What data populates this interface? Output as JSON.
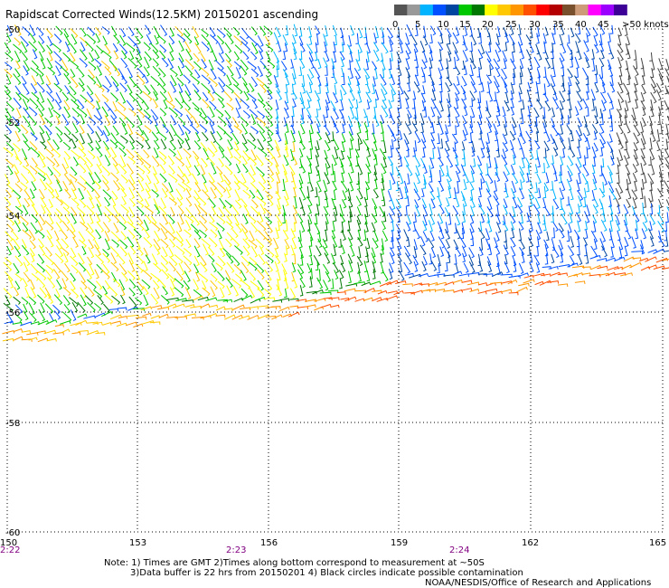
{
  "title": "Rapidscat Corrected Winds(12.5KM) 20150201 ascending",
  "legend": {
    "labels": [
      "0",
      "5",
      "10",
      "15",
      "20",
      "25",
      "30",
      "35",
      "40",
      "45",
      ">50 knots"
    ],
    "colors": [
      "#555555",
      "#999999",
      "#00b4ff",
      "#0050ff",
      "#0046a0",
      "#00c800",
      "#007800",
      "#ffff00",
      "#ffc800",
      "#ff9600",
      "#ff5000",
      "#ff0000",
      "#b40000",
      "#78502d",
      "#cd9b78",
      "#ff00ff",
      "#9b00ff",
      "#3c0096"
    ]
  },
  "axes": {
    "lat_labels": [
      "-50",
      "-52",
      "-54",
      "-56",
      "-58",
      "-60"
    ],
    "lon_labels": [
      "150",
      "153",
      "156",
      "159",
      "162",
      "165"
    ]
  },
  "times": [
    "2:22",
    "2:23",
    "2:24"
  ],
  "notes": {
    "line1": "Note: 1) Times are GMT 2)Times along bottom correspond to measurement at ~50S",
    "line2": "3)Data buffer is 22 hrs from 20150201 4) Black circles indicate possible contamination",
    "line3": "NOAA/NESDIS/Office of Research and Applications"
  }
}
